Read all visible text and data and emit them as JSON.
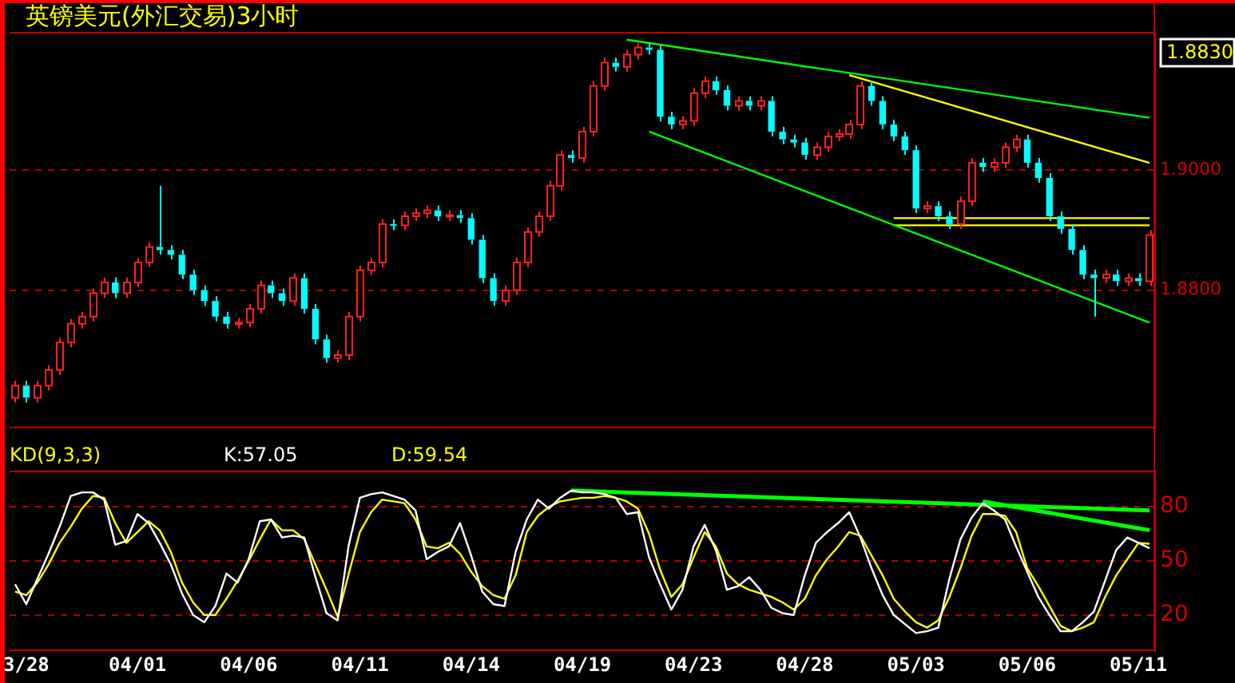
{
  "chart_data": [
    {
      "type": "candlestick",
      "title": "英镑美元(外汇交易)3小时",
      "annotations": [
        "1.8830"
      ],
      "tick_labels": "y",
      "grid": "y",
      "categories": [
        null,
        null,
        null,
        null,
        null,
        null,
        null,
        null,
        null,
        null,
        null,
        null,
        null,
        null,
        null,
        null,
        null,
        null,
        null,
        null,
        null,
        null,
        null,
        null,
        null,
        null,
        null,
        null,
        null,
        null,
        null,
        null,
        null,
        null,
        null,
        null,
        null,
        null,
        null,
        null,
        null,
        null,
        null,
        null,
        null,
        null,
        null,
        null,
        null,
        null,
        null,
        null,
        null,
        null,
        null,
        null,
        null,
        null,
        null,
        null,
        null,
        null,
        null,
        null,
        null,
        null,
        null,
        null,
        null,
        null,
        null,
        null,
        null,
        null,
        null,
        null,
        null,
        null,
        null,
        null,
        null,
        null,
        null,
        null,
        null,
        null,
        null,
        null,
        null,
        null,
        null,
        null,
        null,
        null,
        null,
        null,
        null,
        null,
        null,
        null,
        null,
        null,
        null
      ],
      "ylim": [
        1.857,
        1.923
      ],
      "yticks": [
        {
          "value": 1.88,
          "label": "1.8800"
        },
        {
          "value": 1.9,
          "label": "1.9000"
        }
      ],
      "ohlc": [
        [
          1.8621,
          1.8649,
          1.8613,
          1.8641
        ],
        [
          1.8641,
          1.8649,
          1.8613,
          1.8621
        ],
        [
          1.8621,
          1.8649,
          1.8613,
          1.8641
        ],
        [
          1.8641,
          1.8675,
          1.8633,
          1.8667
        ],
        [
          1.8667,
          1.8721,
          1.8659,
          1.8713
        ],
        [
          1.8713,
          1.8752,
          1.8705,
          1.8744
        ],
        [
          1.8744,
          1.8764,
          1.8736,
          1.8756
        ],
        [
          1.8756,
          1.8803,
          1.8748,
          1.8795
        ],
        [
          1.8795,
          1.8821,
          1.8787,
          1.8813
        ],
        [
          1.8813,
          1.8821,
          1.8787,
          1.8795
        ],
        [
          1.8795,
          1.8821,
          1.8787,
          1.8813
        ],
        [
          1.8813,
          1.8854,
          1.8805,
          1.8846
        ],
        [
          1.8846,
          1.888,
          1.8838,
          1.8872
        ],
        [
          1.8872,
          1.8974,
          1.8859,
          1.8867
        ],
        [
          1.8867,
          1.8875,
          1.8851,
          1.8859
        ],
        [
          1.8859,
          1.8867,
          1.8818,
          1.8826
        ],
        [
          1.8826,
          1.8834,
          1.8792,
          1.88
        ],
        [
          1.88,
          1.8808,
          1.8774,
          1.8782
        ],
        [
          1.8782,
          1.879,
          1.8748,
          1.8756
        ],
        [
          1.8756,
          1.8764,
          1.8736,
          1.8744
        ],
        [
          1.8744,
          1.8754,
          1.8736,
          1.8746
        ],
        [
          1.8746,
          1.8777,
          1.8738,
          1.8769
        ],
        [
          1.8769,
          1.8816,
          1.8761,
          1.8808
        ],
        [
          1.8808,
          1.8816,
          1.8787,
          1.8795
        ],
        [
          1.8795,
          1.8803,
          1.8774,
          1.8782
        ],
        [
          1.8782,
          1.8828,
          1.8774,
          1.882
        ],
        [
          1.882,
          1.8828,
          1.8761,
          1.8769
        ],
        [
          1.8769,
          1.8777,
          1.871,
          1.8718
        ],
        [
          1.8718,
          1.8726,
          1.8679,
          1.8687
        ],
        [
          1.8687,
          1.87,
          1.8679,
          1.8692
        ],
        [
          1.8692,
          1.8764,
          1.8684,
          1.8756
        ],
        [
          1.8756,
          1.8841,
          1.8748,
          1.8833
        ],
        [
          1.8833,
          1.8854,
          1.8825,
          1.8846
        ],
        [
          1.8846,
          1.8918,
          1.8838,
          1.891
        ],
        [
          1.891,
          1.8918,
          1.89,
          1.8908
        ],
        [
          1.8908,
          1.8931,
          1.89,
          1.8923
        ],
        [
          1.8923,
          1.8936,
          1.8915,
          1.8928
        ],
        [
          1.8928,
          1.8941,
          1.892,
          1.8933
        ],
        [
          1.8933,
          1.8941,
          1.8915,
          1.8923
        ],
        [
          1.8923,
          1.8933,
          1.8915,
          1.8925
        ],
        [
          1.8925,
          1.8933,
          1.8912,
          1.892
        ],
        [
          1.892,
          1.8928,
          1.8876,
          1.8884
        ],
        [
          1.8884,
          1.8892,
          1.8812,
          1.882
        ],
        [
          1.882,
          1.8828,
          1.8774,
          1.8782
        ],
        [
          1.8782,
          1.8808,
          1.8774,
          1.88
        ],
        [
          1.88,
          1.8854,
          1.8792,
          1.8846
        ],
        [
          1.8846,
          1.8905,
          1.8838,
          1.8897
        ],
        [
          1.8897,
          1.8931,
          1.8889,
          1.8923
        ],
        [
          1.8923,
          1.8982,
          1.8915,
          1.8974
        ],
        [
          1.8974,
          1.9033,
          1.8966,
          1.9025
        ],
        [
          1.9025,
          1.9033,
          1.9012,
          1.902
        ],
        [
          1.902,
          1.9072,
          1.9012,
          1.9064
        ],
        [
          1.9064,
          1.9148,
          1.9056,
          1.914
        ],
        [
          1.914,
          1.9187,
          1.9132,
          1.9179
        ],
        [
          1.9179,
          1.9187,
          1.9164,
          1.9172
        ],
        [
          1.9172,
          1.92,
          1.9164,
          1.9192
        ],
        [
          1.9192,
          1.9212,
          1.9184,
          1.9204
        ],
        [
          1.9204,
          1.9212,
          1.9192,
          1.92
        ],
        [
          1.92,
          1.9208,
          1.9081,
          1.9089
        ],
        [
          1.9089,
          1.9097,
          1.9068,
          1.9076
        ],
        [
          1.9076,
          1.909,
          1.9068,
          1.9082
        ],
        [
          1.9082,
          1.9136,
          1.9074,
          1.9128
        ],
        [
          1.9128,
          1.9156,
          1.912,
          1.9148
        ],
        [
          1.9148,
          1.9156,
          1.9125,
          1.9133
        ],
        [
          1.9133,
          1.9141,
          1.9099,
          1.9107
        ],
        [
          1.9107,
          1.9123,
          1.9099,
          1.9115
        ],
        [
          1.9115,
          1.9123,
          1.9099,
          1.9107
        ],
        [
          1.9107,
          1.9123,
          1.9099,
          1.9115
        ],
        [
          1.9115,
          1.9123,
          1.9056,
          1.9064
        ],
        [
          1.9064,
          1.9072,
          1.9043,
          1.9051
        ],
        [
          1.9051,
          1.9059,
          1.9038,
          1.9046
        ],
        [
          1.9046,
          1.9054,
          1.9017,
          1.9025
        ],
        [
          1.9025,
          1.9046,
          1.9017,
          1.9038
        ],
        [
          1.9038,
          1.9064,
          1.903,
          1.9056
        ],
        [
          1.9056,
          1.9068,
          1.9048,
          1.906
        ],
        [
          1.906,
          1.9084,
          1.9052,
          1.9076
        ],
        [
          1.9076,
          1.9148,
          1.9068,
          1.914
        ],
        [
          1.914,
          1.9148,
          1.9107,
          1.9115
        ],
        [
          1.9115,
          1.9123,
          1.9068,
          1.9076
        ],
        [
          1.9076,
          1.9084,
          1.9048,
          1.9056
        ],
        [
          1.9056,
          1.9064,
          1.9025,
          1.9033
        ],
        [
          1.9033,
          1.9041,
          1.8928,
          1.8936
        ],
        [
          1.8936,
          1.8948,
          1.8928,
          1.894
        ],
        [
          1.894,
          1.8948,
          1.8915,
          1.8923
        ],
        [
          1.8923,
          1.8931,
          1.8902,
          1.891
        ],
        [
          1.891,
          1.8956,
          1.8902,
          1.8948
        ],
        [
          1.8948,
          1.902,
          1.894,
          1.9012
        ],
        [
          1.9012,
          1.902,
          1.8997,
          1.9005
        ],
        [
          1.9005,
          1.902,
          1.8997,
          1.9012
        ],
        [
          1.9012,
          1.9046,
          1.9004,
          1.9038
        ],
        [
          1.9038,
          1.9059,
          1.903,
          1.9051
        ],
        [
          1.9051,
          1.9059,
          1.9004,
          1.9012
        ],
        [
          1.9012,
          1.902,
          1.8979,
          1.8987
        ],
        [
          1.8987,
          1.8995,
          1.8915,
          1.8923
        ],
        [
          1.8923,
          1.8931,
          1.8894,
          1.8902
        ],
        [
          1.8902,
          1.891,
          1.8859,
          1.8867
        ],
        [
          1.8867,
          1.8875,
          1.8818,
          1.8826
        ],
        [
          1.8826,
          1.8834,
          1.8756,
          1.882
        ],
        [
          1.882,
          1.8834,
          1.8812,
          1.8826
        ],
        [
          1.8826,
          1.8834,
          1.8807,
          1.8815
        ],
        [
          1.8815,
          1.8828,
          1.8807,
          1.882
        ],
        [
          1.882,
          1.8828,
          1.8807,
          1.8815
        ],
        [
          1.8815,
          1.89,
          1.8807,
          1.8892
        ]
      ],
      "series": [
        {
          "type": "line",
          "color": "#00ff00",
          "values": [
            null,
            null,
            null,
            null,
            null,
            null,
            null,
            null,
            null,
            null,
            null,
            null,
            null,
            null,
            null,
            null,
            null,
            null,
            null,
            null,
            null,
            null,
            null,
            null,
            null,
            null,
            null,
            null,
            null,
            null,
            null,
            null,
            null,
            null,
            null,
            null,
            null,
            null,
            null,
            null,
            null,
            null,
            null,
            null,
            null,
            null,
            null,
            null,
            null,
            null,
            null,
            null,
            null,
            null,
            null,
            1.9217,
            null,
            null,
            null,
            null,
            null,
            null,
            null,
            null,
            null,
            null,
            null,
            null,
            null,
            null,
            null,
            null,
            null,
            null,
            null,
            null,
            null,
            null,
            null,
            null,
            null,
            null,
            null,
            null,
            null,
            null,
            null,
            null,
            null,
            null,
            null,
            null,
            null,
            null,
            null,
            null,
            null,
            null,
            null,
            null,
            null,
            null,
            1.9087
          ]
        },
        {
          "type": "line",
          "color": "#00ff00",
          "values": [
            null,
            null,
            null,
            null,
            null,
            null,
            null,
            null,
            null,
            null,
            null,
            null,
            null,
            null,
            null,
            null,
            null,
            null,
            null,
            null,
            null,
            null,
            null,
            null,
            null,
            null,
            null,
            null,
            null,
            null,
            null,
            null,
            null,
            null,
            null,
            null,
            null,
            null,
            null,
            null,
            null,
            null,
            null,
            null,
            null,
            null,
            null,
            null,
            null,
            null,
            null,
            null,
            null,
            null,
            null,
            null,
            null,
            1.9064,
            null,
            null,
            null,
            null,
            null,
            null,
            null,
            null,
            null,
            null,
            null,
            null,
            null,
            null,
            null,
            null,
            null,
            null,
            null,
            null,
            null,
            null,
            null,
            null,
            null,
            null,
            null,
            null,
            null,
            null,
            null,
            null,
            null,
            null,
            null,
            null,
            null,
            null,
            null,
            null,
            null,
            null,
            null,
            null,
            1.8746
          ]
        },
        {
          "type": "line",
          "color": "#ffff00",
          "values": [
            null,
            null,
            null,
            null,
            null,
            null,
            null,
            null,
            null,
            null,
            null,
            null,
            null,
            null,
            null,
            null,
            null,
            null,
            null,
            null,
            null,
            null,
            null,
            null,
            null,
            null,
            null,
            null,
            null,
            null,
            null,
            null,
            null,
            null,
            null,
            null,
            null,
            null,
            null,
            null,
            null,
            null,
            null,
            null,
            null,
            null,
            null,
            null,
            null,
            null,
            null,
            null,
            null,
            null,
            null,
            null,
            null,
            null,
            null,
            null,
            null,
            null,
            null,
            null,
            null,
            null,
            null,
            null,
            null,
            null,
            null,
            null,
            null,
            null,
            null,
            1.9158,
            null,
            null,
            null,
            null,
            null,
            null,
            null,
            null,
            null,
            null,
            null,
            null,
            null,
            null,
            null,
            null,
            null,
            null,
            null,
            null,
            null,
            null,
            null,
            null,
            null,
            null,
            1.9012
          ]
        },
        {
          "type": "line",
          "color": "#ffff00",
          "values": [
            null,
            null,
            null,
            null,
            null,
            null,
            null,
            null,
            null,
            null,
            null,
            null,
            null,
            null,
            null,
            null,
            null,
            null,
            null,
            null,
            null,
            null,
            null,
            null,
            null,
            null,
            null,
            null,
            null,
            null,
            null,
            null,
            null,
            null,
            null,
            null,
            null,
            null,
            null,
            null,
            null,
            null,
            null,
            null,
            null,
            null,
            null,
            null,
            null,
            null,
            null,
            null,
            null,
            null,
            null,
            null,
            null,
            null,
            null,
            null,
            null,
            null,
            null,
            null,
            null,
            null,
            null,
            null,
            null,
            null,
            null,
            null,
            null,
            null,
            null,
            null,
            null,
            null,
            null,
            1.892,
            null,
            null,
            null,
            null,
            null,
            null,
            null,
            null,
            null,
            null,
            null,
            null,
            null,
            null,
            null,
            null,
            null,
            null,
            null,
            null,
            null,
            null,
            1.892
          ]
        },
        {
          "type": "line",
          "color": "#ffff00",
          "values": [
            null,
            null,
            null,
            null,
            null,
            null,
            null,
            null,
            null,
            null,
            null,
            null,
            null,
            null,
            null,
            null,
            null,
            null,
            null,
            null,
            null,
            null,
            null,
            null,
            null,
            null,
            null,
            null,
            null,
            null,
            null,
            null,
            null,
            null,
            null,
            null,
            null,
            null,
            null,
            null,
            null,
            null,
            null,
            null,
            null,
            null,
            null,
            null,
            null,
            null,
            null,
            null,
            null,
            null,
            null,
            null,
            null,
            null,
            null,
            null,
            null,
            null,
            null,
            null,
            null,
            null,
            null,
            null,
            null,
            null,
            null,
            null,
            null,
            null,
            null,
            null,
            null,
            null,
            null,
            1.8908,
            null,
            null,
            null,
            null,
            null,
            null,
            null,
            null,
            null,
            null,
            null,
            null,
            null,
            null,
            null,
            null,
            null,
            null,
            null,
            null,
            null,
            null,
            1.8908
          ]
        }
      ]
    },
    {
      "type": "line",
      "title": "KD(9,3,3)",
      "legend": "top left",
      "grid": "y",
      "categories": [
        null,
        "3/28",
        null,
        null,
        null,
        null,
        null,
        null,
        null,
        null,
        null,
        "04/01",
        null,
        null,
        null,
        null,
        null,
        null,
        null,
        null,
        null,
        "04/06",
        null,
        null,
        null,
        null,
        null,
        null,
        null,
        null,
        null,
        "04/11",
        null,
        null,
        null,
        null,
        null,
        null,
        null,
        null,
        null,
        "04/14",
        null,
        null,
        null,
        null,
        null,
        null,
        null,
        null,
        null,
        "04/19",
        null,
        null,
        null,
        null,
        null,
        null,
        null,
        null,
        null,
        "04/23",
        null,
        null,
        null,
        null,
        null,
        null,
        null,
        null,
        null,
        "04/28",
        null,
        null,
        null,
        null,
        null,
        null,
        null,
        null,
        null,
        "05/03",
        null,
        null,
        null,
        null,
        null,
        null,
        null,
        null,
        null,
        "05/06",
        null,
        null,
        null,
        null,
        null,
        null,
        null,
        null,
        null,
        "05/11",
        null
      ],
      "ylim": [
        0,
        100
      ],
      "yticks": [
        20,
        50,
        80
      ],
      "series": [
        {
          "name": "K:57.05",
          "color": "#ffffff",
          "values": [
            37,
            26,
            40,
            54,
            69,
            86,
            88,
            88,
            84,
            59,
            61,
            76,
            71,
            60,
            48,
            32,
            20,
            16,
            25,
            43,
            38,
            51,
            72,
            73,
            63,
            64,
            63,
            41,
            21,
            17,
            59,
            85,
            87,
            88,
            86,
            84,
            78,
            51,
            55,
            58,
            71,
            53,
            33,
            26,
            25,
            55,
            73,
            84,
            79,
            85,
            89,
            88,
            88,
            87,
            85,
            76,
            77,
            52,
            37,
            23,
            34,
            58,
            70,
            56,
            34,
            36,
            41,
            34,
            24,
            21,
            20,
            42,
            60,
            66,
            71,
            77,
            63,
            46,
            31,
            20,
            15,
            10,
            11,
            13,
            40,
            62,
            74,
            82,
            78,
            73,
            58,
            44,
            30,
            20,
            11,
            11,
            16,
            22,
            39,
            56,
            63,
            60,
            57.05
          ]
        },
        {
          "name": "D:59.54",
          "color": "#ffff00",
          "values": [
            33,
            31,
            38,
            48,
            60,
            69,
            79,
            86,
            85,
            71,
            60,
            66,
            72,
            67,
            55,
            38,
            27,
            20,
            20,
            29,
            39,
            50,
            62,
            73,
            67,
            67,
            62,
            48,
            34,
            19,
            43,
            66,
            77,
            84,
            83,
            82,
            73,
            58,
            57,
            60,
            54,
            44,
            36,
            31,
            29,
            42,
            66,
            75,
            80,
            83,
            84,
            85,
            85,
            86,
            85,
            83,
            79,
            65,
            45,
            30,
            37,
            52,
            66,
            58,
            43,
            37,
            34,
            32,
            30,
            27,
            23,
            29,
            42,
            51,
            58,
            66,
            64,
            53,
            42,
            29,
            22,
            16,
            13,
            17,
            30,
            46,
            64,
            76,
            76,
            75,
            66,
            46,
            36,
            25,
            14,
            11,
            13,
            16,
            30,
            42,
            51,
            60,
            59.54
          ]
        },
        {
          "type": "line",
          "color": "#00ff00",
          "values": [
            null,
            null,
            null,
            null,
            null,
            null,
            null,
            null,
            null,
            null,
            null,
            null,
            null,
            null,
            null,
            null,
            null,
            null,
            null,
            null,
            null,
            null,
            null,
            null,
            null,
            null,
            null,
            null,
            null,
            null,
            null,
            null,
            null,
            null,
            null,
            null,
            null,
            null,
            null,
            null,
            null,
            null,
            null,
            null,
            null,
            null,
            null,
            null,
            null,
            null,
            89,
            null,
            null,
            null,
            null,
            null,
            null,
            null,
            null,
            null,
            null,
            null,
            null,
            null,
            null,
            null,
            null,
            null,
            null,
            null,
            null,
            null,
            null,
            null,
            null,
            null,
            null,
            null,
            null,
            null,
            null,
            null,
            null,
            null,
            null,
            null,
            null,
            null,
            null,
            null,
            null,
            null,
            null,
            null,
            null,
            null,
            null,
            null,
            null,
            null,
            null,
            null,
            78
          ]
        },
        {
          "type": "line",
          "color": "#00ff00",
          "values": [
            null,
            null,
            null,
            null,
            null,
            null,
            null,
            null,
            null,
            null,
            null,
            null,
            null,
            null,
            null,
            null,
            null,
            null,
            null,
            null,
            null,
            null,
            null,
            null,
            null,
            null,
            null,
            null,
            null,
            null,
            null,
            null,
            null,
            null,
            null,
            null,
            null,
            null,
            null,
            null,
            null,
            null,
            null,
            null,
            null,
            null,
            null,
            null,
            null,
            null,
            null,
            null,
            null,
            null,
            null,
            null,
            null,
            null,
            null,
            null,
            null,
            null,
            null,
            null,
            null,
            null,
            null,
            null,
            null,
            null,
            null,
            null,
            null,
            null,
            null,
            null,
            null,
            null,
            null,
            null,
            null,
            null,
            null,
            null,
            null,
            null,
            null,
            83,
            null,
            null,
            null,
            null,
            null,
            null,
            null,
            null,
            null,
            null,
            null,
            null,
            null,
            null,
            67
          ]
        }
      ]
    }
  ]
}
